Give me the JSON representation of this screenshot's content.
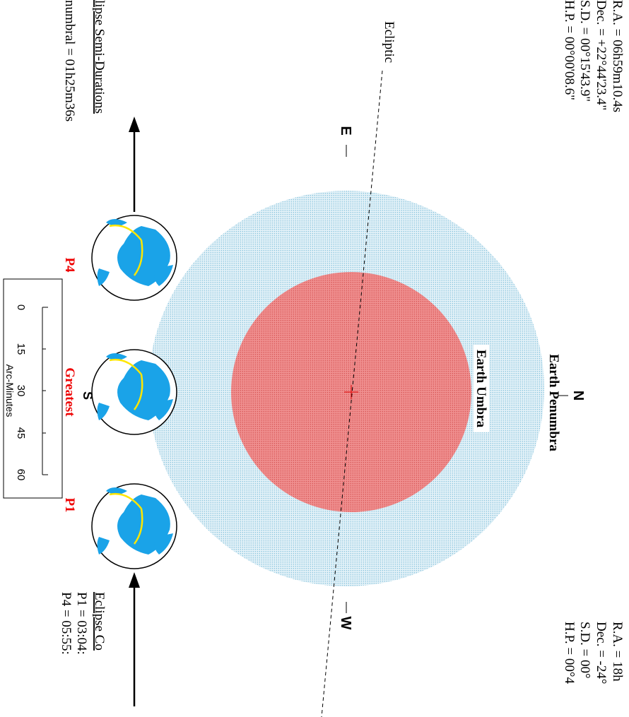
{
  "moon_ephemeris": [
    "R.A. = 06h59m10.4s",
    "Dec. = +22°44'23.4\"",
    "S.D. = 00°15'43.9\"",
    "H.P. = 00°00'08.6\""
  ],
  "shadow_ephemeris": [
    "R.A. = 18h",
    "Dec. = -24°",
    "S.D. = 00°",
    "H.P. = 00°4"
  ],
  "ecliptic_label": "Ecliptic",
  "north": "N",
  "south": "S",
  "east": "E",
  "west": "W",
  "penumbra_label": "Earth Penumbra",
  "umbra_label": "Earth Umbra",
  "moons": [
    {
      "label": "P4"
    },
    {
      "label": "Greatest"
    },
    {
      "label": "P1"
    }
  ],
  "semi_durations": {
    "title": "lipse Semi-Durations",
    "lines": [
      "numbral = 01h25m36s"
    ]
  },
  "contacts": {
    "title": "Eclipse Co",
    "lines": [
      "P1 = 03:04:",
      "P4 = 05:55:"
    ]
  },
  "scale": {
    "ticks": [
      "0",
      "15",
      "30",
      "45",
      "60"
    ],
    "unit": "Arc-Minutes"
  }
}
